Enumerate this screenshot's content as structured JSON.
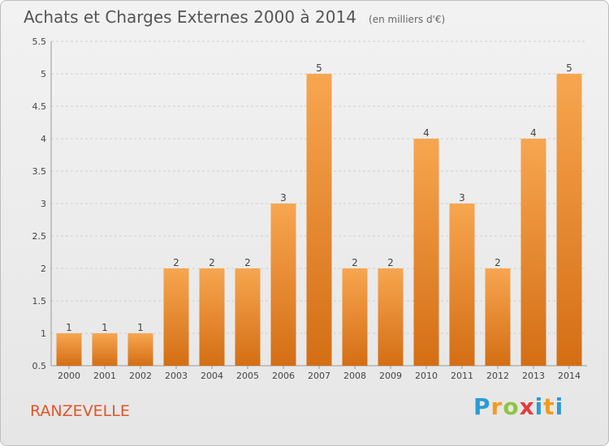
{
  "header": {
    "title": "Achats et Charges Externes 2000 à 2014",
    "unit": "(en milliers d'€)"
  },
  "footer": {
    "place": "RANZEVELLE",
    "logo": "Proxiti"
  },
  "colors": {
    "bar_top": "#f7a650",
    "bar_bottom": "#d46e14",
    "grid": "#cfcfcf",
    "axis_text": "#444444",
    "title": "#555555",
    "place": "#e0552a"
  },
  "chart_data": {
    "type": "bar",
    "categories": [
      "2000",
      "2001",
      "2002",
      "2003",
      "2004",
      "2005",
      "2006",
      "2007",
      "2008",
      "2009",
      "2010",
      "2011",
      "2012",
      "2013",
      "2014"
    ],
    "values": [
      1,
      1,
      1,
      2,
      2,
      2,
      3,
      5,
      2,
      2,
      4,
      3,
      2,
      4,
      5
    ],
    "data_labels": [
      "1",
      "1",
      "1",
      "2",
      "2",
      "2",
      "3",
      "5",
      "2",
      "2",
      "4",
      "3",
      "2",
      "4",
      "5"
    ],
    "ylim": [
      0.5,
      5.5
    ],
    "yticks": [
      "0.5",
      "1",
      "1.5",
      "2",
      "2.5",
      "3",
      "3.5",
      "4",
      "4.5",
      "5",
      "5.5"
    ],
    "grid": true,
    "xlabel": "",
    "ylabel": ""
  }
}
